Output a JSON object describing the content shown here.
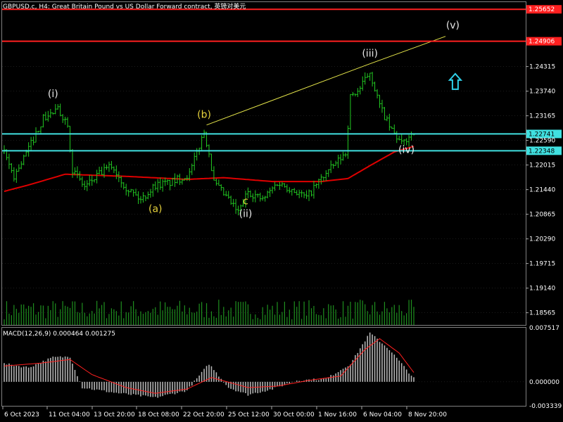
{
  "header": {
    "title": "GBPUSD.c, H4:  Great Britain Pound vs US Dollar Forward contract, 英镑对美元"
  },
  "macd_header": {
    "title": "MACD(12,26,9) 0.000464 0.001275"
  },
  "colors": {
    "background": "#000000",
    "grid": "#3a3a3a",
    "price_bars": "#22c822",
    "volume": "#1f8f1f",
    "ma_line": "#e00000",
    "resistance_line": "#ff2020",
    "support_line": "#40e0e0",
    "trend_line": "#e6e64a",
    "macd_hist": "#b4b4b4",
    "macd_signal": "#ff2020",
    "label_light": "#e8e8e8",
    "label_yellow": "#e6d23c",
    "arrow": "#2fd0e8"
  },
  "chart_data": {
    "type": "line",
    "symbol": "GBPUSD.c",
    "timeframe": "H4",
    "price_axis": {
      "ticks": [
        "1.24315",
        "1.23740",
        "1.23165",
        "1.22590",
        "1.22015",
        "1.21440",
        "1.20865",
        "1.20290",
        "1.19715",
        "1.19140",
        "1.18565"
      ],
      "range": [
        1.1828,
        1.2582
      ]
    },
    "x_axis": {
      "labels": [
        "6 Oct 2023",
        "11 Oct 04:00",
        "13 Oct 20:00",
        "18 Oct 08:00",
        "22 Oct 20:00",
        "25 Oct 12:00",
        "30 Oct 00:00",
        "1 Nov 16:00",
        "6 Nov 04:00",
        "8 Nov 20:00"
      ]
    },
    "price_path": [
      {
        "bar": 0,
        "price": 1.223
      },
      {
        "bar": 4,
        "price": 1.2175
      },
      {
        "bar": 10,
        "price": 1.224
      },
      {
        "bar": 16,
        "price": 1.231
      },
      {
        "bar": 22,
        "price": 1.233
      },
      {
        "bar": 26,
        "price": 1.23
      },
      {
        "bar": 28,
        "price": 1.219
      },
      {
        "bar": 33,
        "price": 1.215
      },
      {
        "bar": 39,
        "price": 1.218
      },
      {
        "bar": 44,
        "price": 1.22
      },
      {
        "bar": 50,
        "price": 1.215
      },
      {
        "bar": 56,
        "price": 1.212
      },
      {
        "bar": 62,
        "price": 1.2155
      },
      {
        "bar": 68,
        "price": 1.216
      },
      {
        "bar": 76,
        "price": 1.218
      },
      {
        "bar": 82,
        "price": 1.228
      },
      {
        "bar": 84,
        "price": 1.223
      },
      {
        "bar": 86,
        "price": 1.216
      },
      {
        "bar": 92,
        "price": 1.212
      },
      {
        "bar": 96,
        "price": 1.209
      },
      {
        "bar": 100,
        "price": 1.214
      },
      {
        "bar": 106,
        "price": 1.212
      },
      {
        "bar": 112,
        "price": 1.216
      },
      {
        "bar": 118,
        "price": 1.2145
      },
      {
        "bar": 124,
        "price": 1.2125
      },
      {
        "bar": 130,
        "price": 1.217
      },
      {
        "bar": 136,
        "price": 1.2205
      },
      {
        "bar": 140,
        "price": 1.223
      },
      {
        "bar": 142,
        "price": 1.236
      },
      {
        "bar": 146,
        "price": 1.238
      },
      {
        "bar": 150,
        "price": 1.242
      },
      {
        "bar": 154,
        "price": 1.234
      },
      {
        "bar": 158,
        "price": 1.229
      },
      {
        "bar": 163,
        "price": 1.225
      },
      {
        "bar": 168,
        "price": 1.228
      }
    ],
    "bar_count": 170,
    "moving_average": [
      {
        "bar": 0,
        "price": 1.214
      },
      {
        "bar": 10,
        "price": 1.2155
      },
      {
        "bar": 25,
        "price": 1.218
      },
      {
        "bar": 50,
        "price": 1.2175
      },
      {
        "bar": 75,
        "price": 1.2168
      },
      {
        "bar": 90,
        "price": 1.2172
      },
      {
        "bar": 110,
        "price": 1.2163
      },
      {
        "bar": 130,
        "price": 1.2163
      },
      {
        "bar": 141,
        "price": 1.217
      },
      {
        "bar": 150,
        "price": 1.22
      },
      {
        "bar": 160,
        "price": 1.2232
      },
      {
        "bar": 168,
        "price": 1.2245
      }
    ],
    "horizontal_levels": [
      {
        "label": "1.25652",
        "price": 1.25652,
        "kind": "resistance"
      },
      {
        "label": "1.24906",
        "price": 1.24906,
        "kind": "resistance"
      },
      {
        "label": "1.22741",
        "price": 1.22741,
        "kind": "support"
      },
      {
        "label": "1.22348",
        "price": 1.22348,
        "kind": "support"
      }
    ],
    "trend_lines": [
      {
        "from": {
          "bar": 83,
          "price": 1.2295
        },
        "to": {
          "bar": 150,
          "price": 1.2438
        }
      },
      {
        "from": {
          "bar": 150,
          "price": 1.2438
        },
        "to": {
          "bar": 181,
          "price": 1.2502
        }
      }
    ],
    "wave_labels": [
      {
        "text": "(i)",
        "bar": 20,
        "price": 1.236,
        "style": "light"
      },
      {
        "text": "(a)",
        "bar": 62,
        "price": 1.2092,
        "style": "yellow"
      },
      {
        "text": "(b)",
        "bar": 82,
        "price": 1.2312,
        "style": "yellow"
      },
      {
        "text": "c",
        "bar": 99,
        "price": 1.211,
        "style": "yellow"
      },
      {
        "text": "(ii)",
        "bar": 99,
        "price": 1.208,
        "style": "light"
      },
      {
        "text": "(iii)",
        "bar": 150,
        "price": 1.2455,
        "style": "light"
      },
      {
        "text": "(iv)",
        "bar": 165,
        "price": 1.223,
        "style": "light"
      },
      {
        "text": "(v)",
        "bar": 184,
        "price": 1.252,
        "style": "light"
      }
    ],
    "up_arrow": {
      "bar": 185,
      "price": 1.2395
    },
    "macd": {
      "params": "(12,26,9)",
      "main": 0.000464,
      "signal": 0.001275,
      "axis_ticks": [
        "0.007517",
        "0.000000",
        "-0.003339"
      ],
      "range": [
        -0.003339,
        0.007517
      ],
      "histogram_path": [
        {
          "bar": 0,
          "value": 0.0025
        },
        {
          "bar": 10,
          "value": 0.002
        },
        {
          "bar": 20,
          "value": 0.0034
        },
        {
          "bar": 27,
          "value": 0.0035
        },
        {
          "bar": 32,
          "value": -0.0008
        },
        {
          "bar": 45,
          "value": -0.0015
        },
        {
          "bar": 62,
          "value": -0.0022
        },
        {
          "bar": 75,
          "value": -0.0012
        },
        {
          "bar": 84,
          "value": 0.0025
        },
        {
          "bar": 92,
          "value": -0.0008
        },
        {
          "bar": 100,
          "value": -0.0018
        },
        {
          "bar": 110,
          "value": -0.001
        },
        {
          "bar": 120,
          "value": 0.0002
        },
        {
          "bar": 132,
          "value": 0.0004
        },
        {
          "bar": 142,
          "value": 0.0025
        },
        {
          "bar": 150,
          "value": 0.0068
        },
        {
          "bar": 158,
          "value": 0.0045
        },
        {
          "bar": 168,
          "value": 0.0005
        }
      ],
      "signal_path": [
        {
          "bar": 0,
          "value": 0.0022
        },
        {
          "bar": 15,
          "value": 0.0026
        },
        {
          "bar": 27,
          "value": 0.0031
        },
        {
          "bar": 36,
          "value": 0.001
        },
        {
          "bar": 50,
          "value": -0.0008
        },
        {
          "bar": 62,
          "value": -0.0016
        },
        {
          "bar": 75,
          "value": -0.001
        },
        {
          "bar": 85,
          "value": 0.0006
        },
        {
          "bar": 100,
          "value": -0.0008
        },
        {
          "bar": 112,
          "value": -0.0006
        },
        {
          "bar": 125,
          "value": 0.0002
        },
        {
          "bar": 138,
          "value": 0.0008
        },
        {
          "bar": 148,
          "value": 0.0045
        },
        {
          "bar": 154,
          "value": 0.006
        },
        {
          "bar": 162,
          "value": 0.004
        },
        {
          "bar": 168,
          "value": 0.0013
        }
      ]
    }
  }
}
